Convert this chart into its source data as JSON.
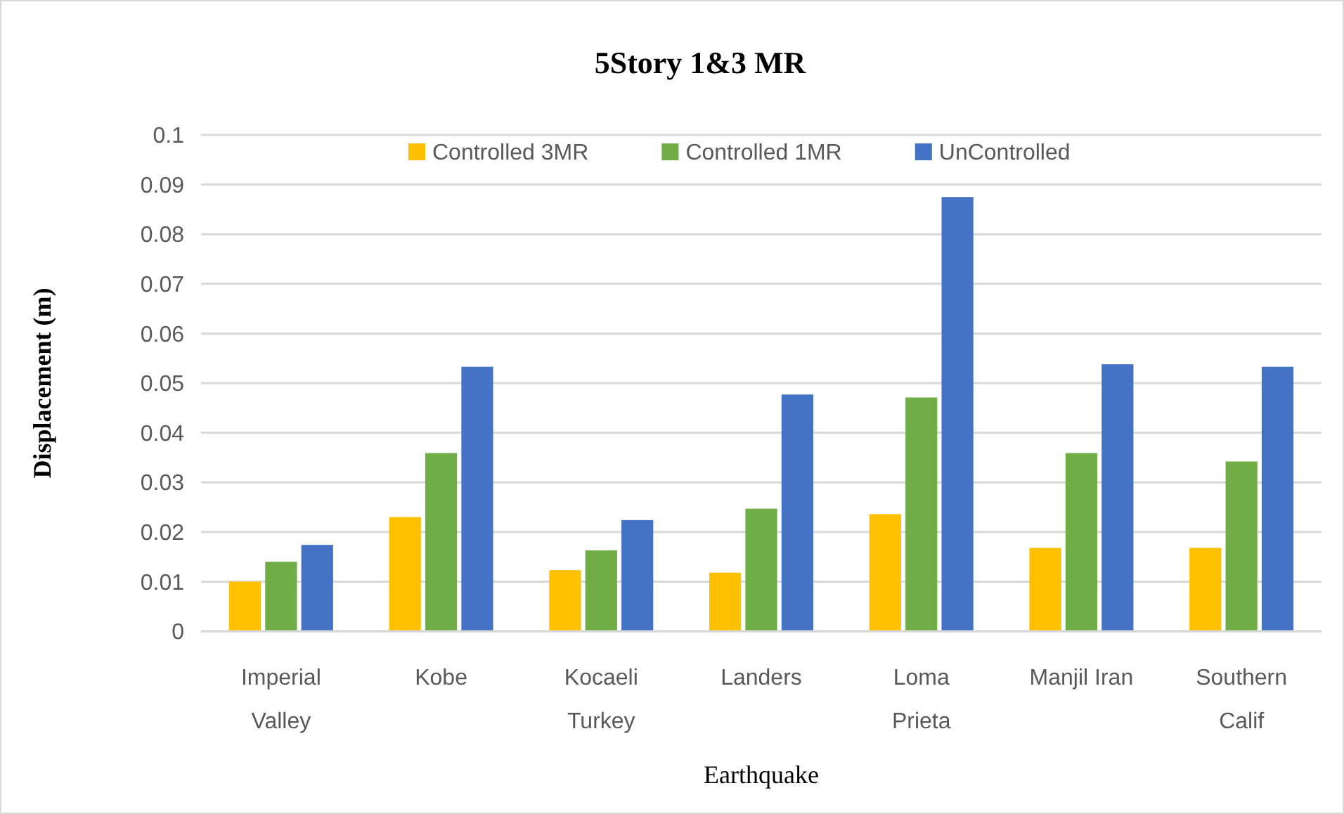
{
  "chart_data": {
    "type": "bar",
    "title": "5Story 1&3 MR",
    "xlabel": "Earthquake",
    "ylabel": "Displacement (m)",
    "categories": [
      "Imperial\nValley",
      "Kobe",
      "Kocaeli\nTurkey",
      "Landers",
      "Loma\nPrieta",
      "Manjil Iran",
      "Southern\nCalif"
    ],
    "series": [
      {
        "name": "Controlled 3MR",
        "color": "#ffc000",
        "values": [
          0.01,
          0.023,
          0.0123,
          0.0118,
          0.0236,
          0.0168,
          0.0168
        ]
      },
      {
        "name": "Controlled 1MR",
        "color": "#70ad47",
        "values": [
          0.014,
          0.0359,
          0.0163,
          0.0247,
          0.0471,
          0.0359,
          0.0342
        ]
      },
      {
        "name": "UnControlled",
        "color": "#4472c4",
        "values": [
          0.0174,
          0.0533,
          0.0224,
          0.0477,
          0.0875,
          0.0538,
          0.0533
        ]
      }
    ],
    "ylim": [
      0,
      0.1
    ],
    "yticks": [
      0,
      0.01,
      0.02,
      0.03,
      0.04,
      0.05,
      0.06,
      0.07,
      0.08,
      0.09,
      0.1
    ],
    "grid": "y",
    "legend": "top"
  }
}
